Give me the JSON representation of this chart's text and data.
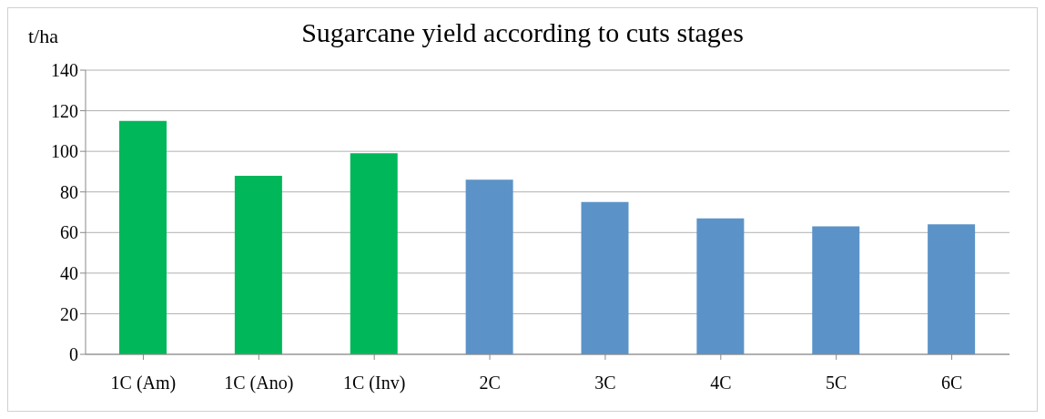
{
  "chart_data": {
    "type": "bar",
    "title": "Sugarcane yield according to cuts stages",
    "ylabel": "t/ha",
    "categories": [
      "1C  (Am)",
      "1C (Ano)",
      "1C (Inv)",
      "2C",
      "3C",
      "4C",
      "5C",
      "6C"
    ],
    "values": [
      115,
      88,
      99,
      86,
      75,
      67,
      63,
      64
    ],
    "colors": [
      "#00b75a",
      "#00b75a",
      "#00b75a",
      "#5b93c8",
      "#5b93c8",
      "#5b93c8",
      "#5b93c8",
      "#5b93c8"
    ],
    "ylim": [
      0,
      140
    ],
    "yticks": [
      0,
      20,
      40,
      60,
      80,
      100,
      120,
      140
    ],
    "grid": "y"
  }
}
